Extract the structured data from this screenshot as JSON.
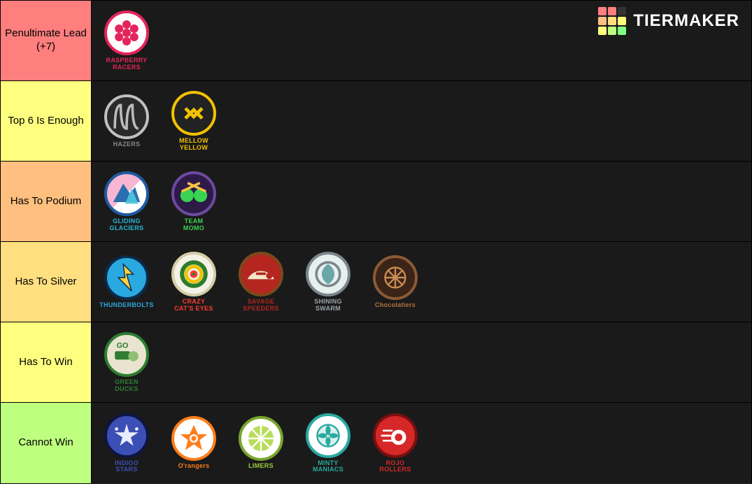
{
  "watermark": {
    "text": "TIERMAKER",
    "grid_colors": [
      "#ff7f7f",
      "#ff7f7f",
      "#333333",
      "#ffbf7f",
      "#ffdf7f",
      "#ffff7f",
      "#ffff7f",
      "#bfff7f",
      "#7fff7f"
    ]
  },
  "tiers": [
    {
      "label": "Penultimate Lead (+7)",
      "color": "#ff7f7f",
      "items": [
        {
          "name": "RASPBERRY\nRACERS",
          "name_color": "#e4245c",
          "icon_bg": "#ffffff",
          "icon_ring": "#e4245c",
          "glyph_svg": "<g fill='#e4245c'><circle cx='0' cy='-10' r='5'/><circle cx='-9' cy='-5' r='5'/><circle cx='9' cy='-5' r='5'/><circle cx='-9' cy='5' r='5'/><circle cx='9' cy='5' r='5'/><circle cx='0' cy='10' r='5'/><circle cx='0' cy='0' r='5'/></g>"
        }
      ]
    },
    {
      "label": "Top 6 Is Enough",
      "color": "#ffff7f",
      "items": [
        {
          "name": "HAZERS",
          "name_color": "#888888",
          "icon_bg": "#2a2a2a",
          "icon_ring": "#c0c0c0",
          "glyph_svg": "<g fill='none' stroke='#bbbbbb' stroke-width='3'><path d='M-14 14 Q-14 -14 -7 -14 Q-7 14 0 14 Q0 -14 7 -14 Q7 14 14 14'/></g>"
        },
        {
          "name": "MELLOW\nYELLOW",
          "name_color": "#f2c200",
          "icon_bg": "#222222",
          "icon_ring": "#f2c200",
          "glyph_svg": "<g stroke='#f2c200' stroke-width='4' fill='none'><path d='M-10 -6 L0 4 L10 -6'/><path d='M-10 6 L0 -4 L10 6'/></g>"
        }
      ]
    },
    {
      "label": "Has To Podium",
      "color": "#ffbf7f",
      "items": [
        {
          "name": "GLIDING\nGLACIERS",
          "name_color": "#29b8d6",
          "icon_bg": "linear-gradient(135deg,#f7b6d2 0%,#f7b6d2 50%,#ffffff 50%,#ffffff 100%)",
          "icon_ring": "#1e5aa0",
          "glyph_svg": "<g><path d='M-16 10 L-4 -12 L4 0 L10 -8 L16 10 Z' fill='#2b6fb0'/><path d='M-2 12 L6 -6 L14 12 Z' fill='#4ec5e0' opacity='0.9'/></g>"
        },
        {
          "name": "TEAM\nMOMO",
          "name_color": "#39d353",
          "icon_bg": "#2e1a47",
          "icon_ring": "#6d4aa0",
          "glyph_svg": "<g><circle cx='-8' cy='2' r='8' fill='#39d353'/><circle cx='8' cy='2' r='8' fill='#39d353'/><rect x='-12' y='-10' width='24' height='3' fill='#f6c244' transform='rotate(25)'/><rect x='-12' y='-10' width='24' height='3' fill='#f6c244' transform='rotate(-25)'/></g>"
        }
      ]
    },
    {
      "label": "Has To Silver",
      "color": "#ffdf7f",
      "items": [
        {
          "name": "THUNDERBOLTS",
          "name_color": "#2aa9e0",
          "icon_bg": "#2aa9e0",
          "icon_ring": "#0b2a4a",
          "glyph_svg": "<path d='M-4 -16 L8 -4 L0 -4 L6 16 L-10 0 L-2 0 Z' fill='#ffd23f' stroke='#0b2a4a' stroke-width='1.2'/>"
        },
        {
          "name": "CRAZY\nCAT'S EYES",
          "name_color": "#ff3b30",
          "icon_bg": "#f4f1e6",
          "icon_ring": "#d6cda8",
          "glyph_svg": "<g><circle cx='0' cy='0' r='14' fill='none' stroke='#2d7d2d' stroke-width='5'/><circle cx='0' cy='0' r='9' fill='none' stroke='#f2c200' stroke-width='4'/><circle cx='0' cy='0' r='4.5' fill='#ff3b30'/><circle cx='0' cy='0' r='1.8' fill='#2d7d2d'/></g>"
        },
        {
          "name": "SAVAGE\nSPEEDERS",
          "name_color": "#b4261f",
          "icon_bg": "#b4261f",
          "icon_ring": "#7a4a1a",
          "glyph_svg": "<g><path d='M-16 6 A18 18 0 0 1 16 6' fill='#f4e6c8'/><circle cx='10' cy='2' r='3.8' fill='#b4261f'/><rect x='-6' y='-2' width='12' height='3' fill='#b4261f' rx='1'/></g>"
        },
        {
          "name": "SHINING\nSWARM",
          "name_color": "#9aa5aa",
          "icon_bg": "#e7efef",
          "icon_ring": "#7a868a",
          "glyph_svg": "<g><circle cx='0' cy='0' r='14' fill='none' stroke='#7a868a' stroke-width='3'/><path d='M0 -12 C 10 -6 10 6 0 12 C -10 6 -10 -6 0 -12 Z' fill='#6aa6a6'/></g>"
        },
        {
          "name": "Chocolatiers",
          "name_color": "#b5733a",
          "icon_bg": "#3a2418",
          "icon_ring": "#8a5a34",
          "glyph_svg": "<g fill='none' stroke='#c98c52' stroke-width='2'><circle cx='0' cy='0' r='12'/><line x1='-12' y1='0' x2='12' y2='0'/><line x1='0' y1='-12' x2='0' y2='12'/><line x1='-8.5' y1='-8.5' x2='8.5' y2='8.5'/><line x1='-8.5' y1='8.5' x2='8.5' y2='-8.5'/></g>"
        }
      ]
    },
    {
      "label": "Has To Win",
      "color": "#ffff7f",
      "items": [
        {
          "name": "GREEN\nDUCKS",
          "name_color": "#2e7d32",
          "icon_bg": "#e9e4cf",
          "icon_ring": "#2e7d32",
          "glyph_svg": "<g><rect x='-14' y='-4' width='18' height='10' fill='#2e7d32' rx='2'/><circle cx='8' cy='2' r='6' fill='#8fbf73'/><text x='-12' y='-8' font-size='9' fill='#2e7d32' font-weight='bold'>GO</text></g>"
        }
      ]
    },
    {
      "label": "Cannot Win",
      "color": "#bfff7f",
      "items": [
        {
          "name": "INDIGO\nSTARS",
          "name_color": "#3b4fb5",
          "icon_bg": "#3b4fb5",
          "icon_ring": "#0e1540",
          "glyph_svg": "<g fill='#e8ecff'><path d='M0 -14 L3 -4 L14 -4 L5 2 L8 12 L0 6 L-8 12 L-5 2 L-14 -4 L-3 -4 Z'/><circle cx='-12' cy='-8' r='2'/><circle cx='12' cy='-8' r='2'/></g>"
        },
        {
          "name": "O'rangers",
          "name_color": "#ff7d1a",
          "icon_bg": "#ffffff",
          "icon_ring": "#ff7d1a",
          "glyph_svg": "<g><path d='M0 -16 L5 -5 L16 -5 L7 2 L10 14 L0 7 L-10 14 L-7 2 L-16 -5 L-5 -5 Z' fill='#ff7d1a'/><circle cx='0' cy='0' r='5' fill='#fff'/><circle cx='0' cy='0' r='3' fill='#ff7d1a'/></g>"
        },
        {
          "name": "LIMERS",
          "name_color": "#9ccc3c",
          "icon_bg": "#ffffff",
          "icon_ring": "#7aa52e",
          "glyph_svg": "<g><circle cx='0' cy='0' r='15' fill='#b7dd5a'/><g stroke='#ffffff' stroke-width='2'><line x1='0' y1='-15' x2='0' y2='15'/><line x1='-15' y1='0' x2='15' y2='0'/><line x1='-10.6' y1='-10.6' x2='10.6' y2='10.6'/><line x1='-10.6' y1='10.6' x2='10.6' y2='-10.6'/></g></g>"
        },
        {
          "name": "MINTY\nMANIACS",
          "name_color": "#2aa9a0",
          "icon_bg": "#ffffff",
          "icon_ring": "#2aa9a0",
          "glyph_svg": "<g><circle cx='0' cy='0' r='13' fill='#d8f2ee' stroke='#2aa9a0' stroke-width='2'/><g fill='#2aa9a0'><path d='M0 -13 Q6 -6 0 0 Q-6 -6 0 -13Z'/><path d='M13 0 Q6 6 0 0 Q6 -6 13 0Z'/><path d='M0 13 Q-6 6 0 0 Q6 6 0 13Z'/><path d='M-13 0 Q-6 -6 0 0 Q-6 6 -13 0Z'/></g><circle cx='0' cy='0' r='3.5' fill='#2aa9a0'/><text x='0' y='2.5' font-size='5' fill='#fff' text-anchor='middle' font-weight='bold'>M</text></g>"
        },
        {
          "name": "ROJO\nROLLERS",
          "name_color": "#d62828",
          "icon_bg": "#d62828",
          "icon_ring": "#7a0f0f",
          "glyph_svg": "<g><circle cx='4' cy='2' r='9' fill='#ffffff'/><circle cx='4' cy='2' r='4.5' fill='#d62828'/><g stroke='#ffffff' stroke-width='2.2' stroke-linecap='round'><line x1='-14' y1='-6' x2='-4' y2='-6'/><line x1='-16' y1='0' x2='-6' y2='0'/><line x1='-14' y1='6' x2='-4' y2='6'/></g></g>"
        }
      ]
    }
  ]
}
